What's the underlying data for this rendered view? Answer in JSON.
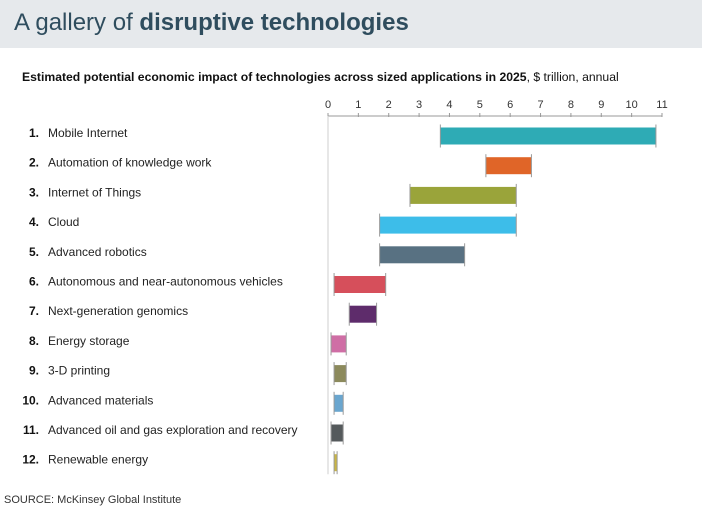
{
  "title": {
    "prefix": "A gallery of ",
    "emphasis": "disruptive technologies"
  },
  "subtitle": {
    "emphasis": "Estimated potential economic impact of technologies across sized applications in 2025",
    "rest": ", $ trillion, annual"
  },
  "source": "SOURCE: McKinsey Global Institute",
  "chart_data": {
    "type": "bar",
    "orientation": "horizontal-range",
    "xlim": [
      0,
      11
    ],
    "xticks": [
      "0",
      "1",
      "2",
      "3",
      "4",
      "5",
      "6",
      "7",
      "8",
      "9",
      "10",
      "11"
    ],
    "grid": false,
    "categories": [
      {
        "num": "1.",
        "label": "Mobile Internet",
        "low": 3.7,
        "high": 10.8,
        "color": "#2eabb5"
      },
      {
        "num": "2.",
        "label": "Automation of knowledge work",
        "low": 5.2,
        "high": 6.7,
        "color": "#e06528"
      },
      {
        "num": "3.",
        "label": "Internet of Things",
        "low": 2.7,
        "high": 6.2,
        "color": "#9aa43a"
      },
      {
        "num": "4.",
        "label": "Cloud",
        "low": 1.7,
        "high": 6.2,
        "color": "#3dbde9"
      },
      {
        "num": "5.",
        "label": "Advanced robotics",
        "low": 1.7,
        "high": 4.5,
        "color": "#587182"
      },
      {
        "num": "6.",
        "label": "Autonomous and near-autonomous vehicles",
        "low": 0.2,
        "high": 1.9,
        "color": "#d64f5b"
      },
      {
        "num": "7.",
        "label": "Next-generation genomics",
        "low": 0.7,
        "high": 1.6,
        "color": "#5e2c6b"
      },
      {
        "num": "8.",
        "label": "Energy storage",
        "low": 0.1,
        "high": 0.6,
        "color": "#cf6ea5"
      },
      {
        "num": "9.",
        "label": "3-D printing",
        "low": 0.2,
        "high": 0.6,
        "color": "#8c8a5c"
      },
      {
        "num": "10.",
        "label": "Advanced materials",
        "low": 0.2,
        "high": 0.5,
        "color": "#6aa6cf"
      },
      {
        "num": "11.",
        "label": "Advanced oil and gas exploration and recovery",
        "low": 0.1,
        "high": 0.5,
        "color": "#555a5c"
      },
      {
        "num": "12.",
        "label": "Renewable energy",
        "low": 0.2,
        "high": 0.3,
        "color": "#cbb643"
      }
    ]
  }
}
